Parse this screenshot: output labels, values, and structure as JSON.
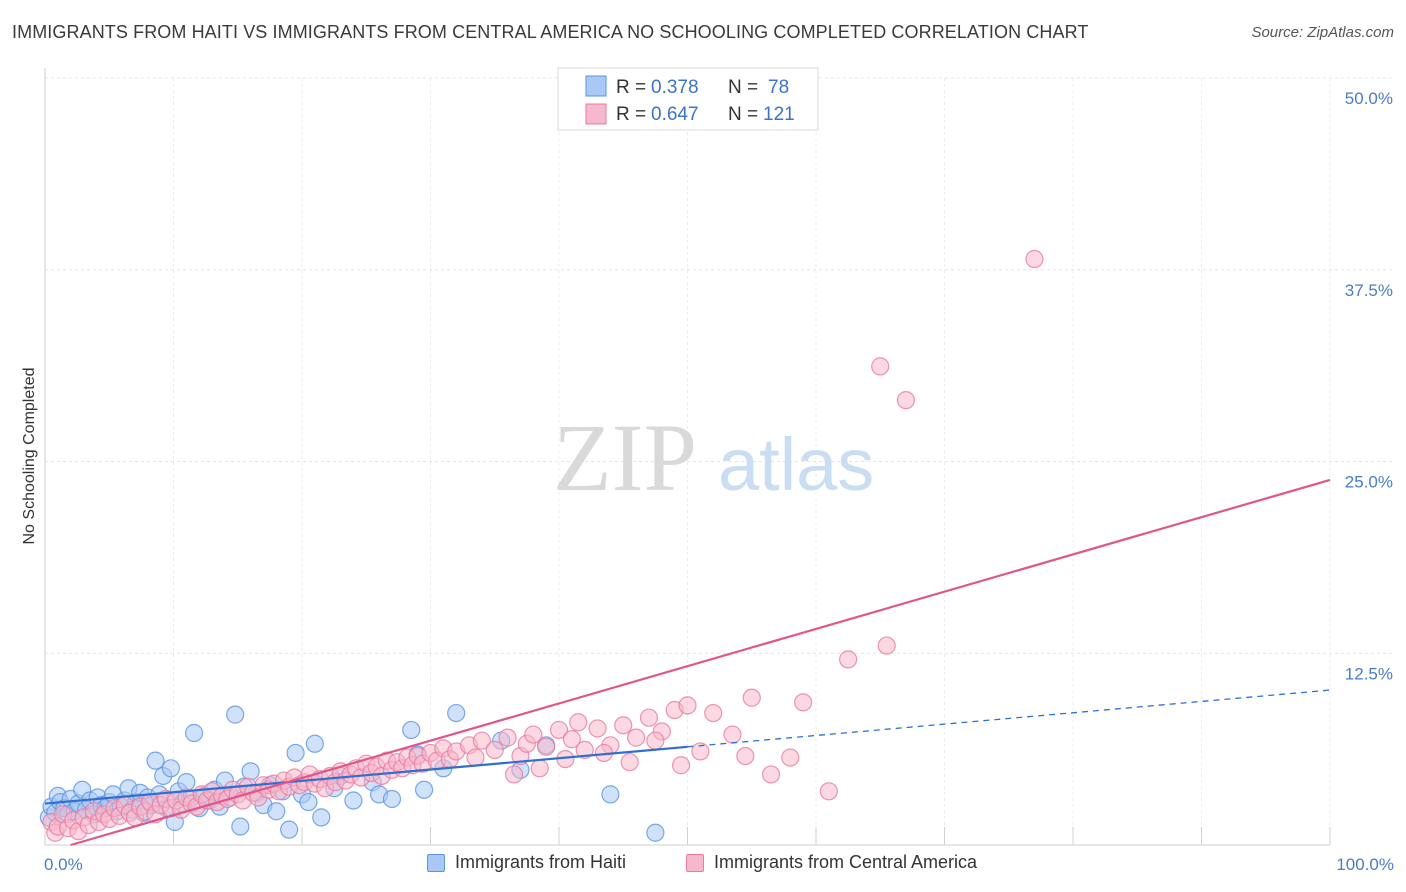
{
  "title": "IMMIGRANTS FROM HAITI VS IMMIGRANTS FROM CENTRAL AMERICA NO SCHOOLING COMPLETED CORRELATION CHART",
  "source": "Source: ZipAtlas.com",
  "watermark": {
    "zip": "ZIP",
    "atlas": "atlas"
  },
  "legend": {
    "items": [
      {
        "r_label": "R =",
        "r_value": "0.378",
        "n_label": "N =",
        "n_value": "78",
        "color": "#a9c8f5"
      },
      {
        "r_label": "R =",
        "r_value": "0.647",
        "n_label": "N =",
        "n_value": "121",
        "color": "#f7b8cb"
      }
    ]
  },
  "bottom_legend": [
    {
      "label": "Immigrants from Haiti",
      "color": "#a9c8f5"
    },
    {
      "label": "Immigrants from Central America",
      "color": "#f7b8cb"
    }
  ],
  "chart_data": {
    "type": "scatter",
    "title": "IMMIGRANTS FROM HAITI VS IMMIGRANTS FROM CENTRAL AMERICA NO SCHOOLING COMPLETED CORRELATION CHART",
    "xlabel": "",
    "ylabel": "No Schooling Completed",
    "xlim": [
      0,
      100
    ],
    "ylim": [
      0,
      50
    ],
    "x_tick_labels": [
      "0.0%",
      "100.0%"
    ],
    "y_tick_labels": [
      "12.5%",
      "25.0%",
      "37.5%",
      "50.0%"
    ],
    "y_ticks": [
      12.5,
      25.0,
      37.5,
      50.0
    ],
    "grid": true,
    "series": [
      {
        "name": "Immigrants from Haiti",
        "color": "#5b93de",
        "fill": "#a9c8f5",
        "trend": {
          "x": [
            0,
            50
          ],
          "y": [
            2.7,
            6.4
          ],
          "dashed_to": [
            100,
            10.1
          ],
          "color": "#2f6fd0"
        },
        "points": [
          [
            0.3,
            1.8
          ],
          [
            0.5,
            2.5
          ],
          [
            0.8,
            2.1
          ],
          [
            1.0,
            3.2
          ],
          [
            1.2,
            2.8
          ],
          [
            1.5,
            2.4
          ],
          [
            1.8,
            2.0
          ],
          [
            2.0,
            3.0
          ],
          [
            2.3,
            2.2
          ],
          [
            2.6,
            2.7
          ],
          [
            2.9,
            3.6
          ],
          [
            3.2,
            2.3
          ],
          [
            3.5,
            2.9
          ],
          [
            3.8,
            2.0
          ],
          [
            4.1,
            3.1
          ],
          [
            4.4,
            2.6
          ],
          [
            4.7,
            2.4
          ],
          [
            5.0,
            2.8
          ],
          [
            5.3,
            3.3
          ],
          [
            5.6,
            2.2
          ],
          [
            5.9,
            2.5
          ],
          [
            6.2,
            2.9
          ],
          [
            6.5,
            3.7
          ],
          [
            6.8,
            2.3
          ],
          [
            7.1,
            2.8
          ],
          [
            7.4,
            3.4
          ],
          [
            7.7,
            2.1
          ],
          [
            8.0,
            3.1
          ],
          [
            8.3,
            2.6
          ],
          [
            8.6,
            5.5
          ],
          [
            8.9,
            3.3
          ],
          [
            9.2,
            4.5
          ],
          [
            9.5,
            2.4
          ],
          [
            9.8,
            5.0
          ],
          [
            10.1,
            1.5
          ],
          [
            10.4,
            3.5
          ],
          [
            10.7,
            2.7
          ],
          [
            11.0,
            4.1
          ],
          [
            11.3,
            3.0
          ],
          [
            11.6,
            7.3
          ],
          [
            12.0,
            2.4
          ],
          [
            12.4,
            3.2
          ],
          [
            12.8,
            2.9
          ],
          [
            13.2,
            3.6
          ],
          [
            13.6,
            2.5
          ],
          [
            14.0,
            4.2
          ],
          [
            14.4,
            3.1
          ],
          [
            14.8,
            8.5
          ],
          [
            15.2,
            1.2
          ],
          [
            15.5,
            3.8
          ],
          [
            16.0,
            4.8
          ],
          [
            16.5,
            3.4
          ],
          [
            17.0,
            2.6
          ],
          [
            17.5,
            3.9
          ],
          [
            18.0,
            2.2
          ],
          [
            18.5,
            3.5
          ],
          [
            19.0,
            1.0
          ],
          [
            19.5,
            6.0
          ],
          [
            20.0,
            3.3
          ],
          [
            20.5,
            2.8
          ],
          [
            21.0,
            6.6
          ],
          [
            21.5,
            1.8
          ],
          [
            22.5,
            3.7
          ],
          [
            23.0,
            4.5
          ],
          [
            24.0,
            2.9
          ],
          [
            25.5,
            4.1
          ],
          [
            26.0,
            3.3
          ],
          [
            27.0,
            3.0
          ],
          [
            28.5,
            7.5
          ],
          [
            29.0,
            5.9
          ],
          [
            29.5,
            3.6
          ],
          [
            31.0,
            5.0
          ],
          [
            32.0,
            8.6
          ],
          [
            35.5,
            6.8
          ],
          [
            37.0,
            4.9
          ],
          [
            39.0,
            6.5
          ],
          [
            44.0,
            3.3
          ],
          [
            47.5,
            0.8
          ]
        ]
      },
      {
        "name": "Immigrants from Central America",
        "color": "#e97aa0",
        "fill": "#f7b8cb",
        "trend": {
          "x": [
            2,
            100
          ],
          "y": [
            0.0,
            23.8
          ],
          "color": "#e0568a"
        },
        "points": [
          [
            0.5,
            1.5
          ],
          [
            0.8,
            0.8
          ],
          [
            1.0,
            1.2
          ],
          [
            1.4,
            2.0
          ],
          [
            1.8,
            1.1
          ],
          [
            2.2,
            1.6
          ],
          [
            2.6,
            0.9
          ],
          [
            3.0,
            1.8
          ],
          [
            3.4,
            1.3
          ],
          [
            3.8,
            2.2
          ],
          [
            4.2,
            1.5
          ],
          [
            4.6,
            2.0
          ],
          [
            5.0,
            1.7
          ],
          [
            5.4,
            2.4
          ],
          [
            5.8,
            1.9
          ],
          [
            6.2,
            2.6
          ],
          [
            6.6,
            2.1
          ],
          [
            7.0,
            1.8
          ],
          [
            7.4,
            2.5
          ],
          [
            7.8,
            2.2
          ],
          [
            8.2,
            2.8
          ],
          [
            8.6,
            2.0
          ],
          [
            9.0,
            2.6
          ],
          [
            9.4,
            3.0
          ],
          [
            9.8,
            2.4
          ],
          [
            10.2,
            2.9
          ],
          [
            10.6,
            2.3
          ],
          [
            11.0,
            3.1
          ],
          [
            11.4,
            2.7
          ],
          [
            11.8,
            2.5
          ],
          [
            12.2,
            3.3
          ],
          [
            12.6,
            2.9
          ],
          [
            13.0,
            3.5
          ],
          [
            13.4,
            2.8
          ],
          [
            13.8,
            3.2
          ],
          [
            14.2,
            3.0
          ],
          [
            14.6,
            3.6
          ],
          [
            15.0,
            3.3
          ],
          [
            15.4,
            2.9
          ],
          [
            15.8,
            3.8
          ],
          [
            16.2,
            3.4
          ],
          [
            16.6,
            3.1
          ],
          [
            17.0,
            3.9
          ],
          [
            17.4,
            3.6
          ],
          [
            17.8,
            4.0
          ],
          [
            18.2,
            3.5
          ],
          [
            18.6,
            4.2
          ],
          [
            19.0,
            3.8
          ],
          [
            19.4,
            4.4
          ],
          [
            19.8,
            3.9
          ],
          [
            20.2,
            4.1
          ],
          [
            20.6,
            4.6
          ],
          [
            21.0,
            4.0
          ],
          [
            21.4,
            4.3
          ],
          [
            21.8,
            3.7
          ],
          [
            22.2,
            4.5
          ],
          [
            22.6,
            4.1
          ],
          [
            23.0,
            4.8
          ],
          [
            23.4,
            4.2
          ],
          [
            23.8,
            4.6
          ],
          [
            24.2,
            5.0
          ],
          [
            24.6,
            4.4
          ],
          [
            25.0,
            5.3
          ],
          [
            25.4,
            4.7
          ],
          [
            25.8,
            5.1
          ],
          [
            26.2,
            4.5
          ],
          [
            26.6,
            5.5
          ],
          [
            27.0,
            4.9
          ],
          [
            27.4,
            5.4
          ],
          [
            27.8,
            5.0
          ],
          [
            28.2,
            5.7
          ],
          [
            28.6,
            5.2
          ],
          [
            29.0,
            5.8
          ],
          [
            29.4,
            5.3
          ],
          [
            30.0,
            6.0
          ],
          [
            30.5,
            5.5
          ],
          [
            31.0,
            6.3
          ],
          [
            31.5,
            5.6
          ],
          [
            32.0,
            6.1
          ],
          [
            33.0,
            6.5
          ],
          [
            33.5,
            5.7
          ],
          [
            34.0,
            6.8
          ],
          [
            35.0,
            6.2
          ],
          [
            36.0,
            7.0
          ],
          [
            37.0,
            5.8
          ],
          [
            37.5,
            6.6
          ],
          [
            38.0,
            7.2
          ],
          [
            39.0,
            6.4
          ],
          [
            40.0,
            7.5
          ],
          [
            41.0,
            6.9
          ],
          [
            41.5,
            8.0
          ],
          [
            42.0,
            6.2
          ],
          [
            43.0,
            7.6
          ],
          [
            44.0,
            6.5
          ],
          [
            45.0,
            7.8
          ],
          [
            46.0,
            7.0
          ],
          [
            47.0,
            8.3
          ],
          [
            48.0,
            7.4
          ],
          [
            49.0,
            8.8
          ],
          [
            50.0,
            9.1
          ],
          [
            36.5,
            4.6
          ],
          [
            38.5,
            5.0
          ],
          [
            40.5,
            5.6
          ],
          [
            43.5,
            6.0
          ],
          [
            45.5,
            5.4
          ],
          [
            47.5,
            6.8
          ],
          [
            49.5,
            5.2
          ],
          [
            51.0,
            6.1
          ],
          [
            52.0,
            8.6
          ],
          [
            53.5,
            7.2
          ],
          [
            54.5,
            5.8
          ],
          [
            55.0,
            9.6
          ],
          [
            56.5,
            4.6
          ],
          [
            58.0,
            5.7
          ],
          [
            59.0,
            9.3
          ],
          [
            61.0,
            3.5
          ],
          [
            62.5,
            12.1
          ],
          [
            65.5,
            13.0
          ],
          [
            65.0,
            31.2
          ],
          [
            67.0,
            29.0
          ],
          [
            77.0,
            38.2
          ]
        ]
      }
    ]
  }
}
